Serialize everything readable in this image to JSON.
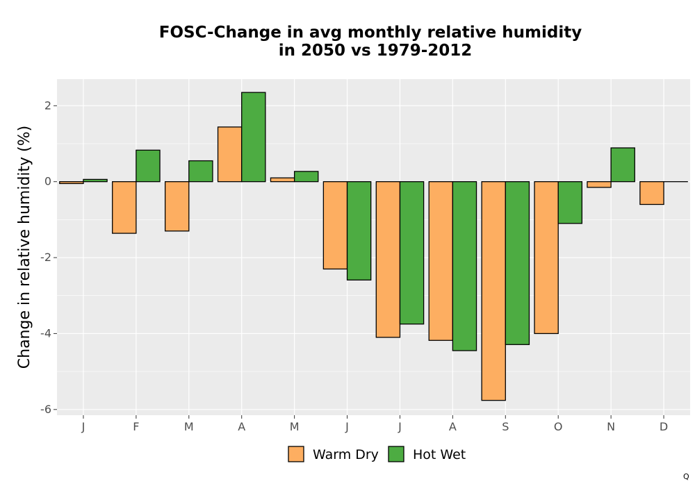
{
  "chart_data": {
    "type": "bar",
    "title_line1": "FOSC-Change in avg monthly relative humidity",
    "title_line2": "in 2050 vs 1979-2012",
    "xlabel": "",
    "ylabel": "Change in relative humidity (%)",
    "categories": [
      "J",
      "F",
      "M",
      "A",
      "M",
      "J",
      "J",
      "A",
      "S",
      "O",
      "N",
      "D"
    ],
    "series": [
      {
        "name": "Warm Dry",
        "color": "#FDAE61",
        "values": [
          -0.05,
          -1.36,
          -1.3,
          1.44,
          0.1,
          -2.3,
          -4.1,
          -4.18,
          -5.76,
          -4.0,
          -0.15,
          -0.6
        ]
      },
      {
        "name": "Hot Wet",
        "color": "#4DAC42",
        "values": [
          0.06,
          0.83,
          0.55,
          2.35,
          0.27,
          -2.59,
          -3.75,
          -4.45,
          -4.29,
          -1.1,
          0.89,
          0.0
        ]
      }
    ],
    "ylim": [
      -6.15,
      2.7
    ],
    "yticks": [
      -6,
      -4,
      -2,
      0,
      2
    ],
    "ytick_labels": [
      "-6",
      "-4",
      "-2",
      "0",
      "2"
    ],
    "grid": true,
    "legend_position": "bottom",
    "panel_background": "#EBEBEB",
    "grid_color": "#FFFFFF"
  },
  "corner_mark": "Q"
}
